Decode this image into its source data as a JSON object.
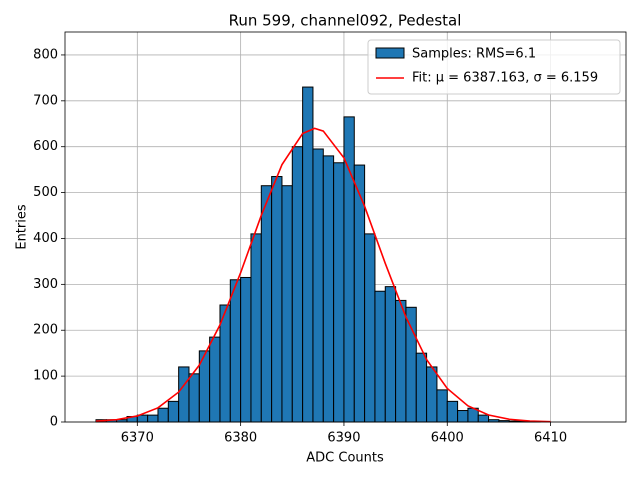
{
  "chart_data": {
    "type": "histogram",
    "title": "Run 599, channel092, Pedestal",
    "xlabel": "ADC Counts",
    "ylabel": "Entries",
    "name": "Samples: RMS=6.1",
    "color": "#1f77b4",
    "bins": [
      6366,
      6367,
      6368,
      6369,
      6370,
      6371,
      6372,
      6373,
      6374,
      6375,
      6376,
      6377,
      6378,
      6379,
      6380,
      6381,
      6382,
      6383,
      6384,
      6385,
      6386,
      6387,
      6388,
      6389,
      6390,
      6391,
      6392,
      6393,
      6394,
      6395,
      6396,
      6397,
      6398,
      6399,
      6400,
      6401,
      6402,
      6403,
      6404,
      6405,
      6406,
      6407,
      6408,
      6409
    ],
    "values": [
      5,
      5,
      5,
      12,
      15,
      15,
      30,
      45,
      120,
      105,
      155,
      185,
      255,
      310,
      315,
      410,
      515,
      535,
      515,
      600,
      730,
      595,
      580,
      565,
      665,
      560,
      410,
      285,
      295,
      265,
      250,
      150,
      120,
      70,
      45,
      25,
      30,
      15,
      5,
      3,
      2,
      1,
      1
    ],
    "fit": {
      "name": "Fit: μ = 6387.163, σ = 6.159",
      "color": "#ff0000",
      "x": [
        6366,
        6368,
        6370,
        6372,
        6374,
        6376,
        6378,
        6380,
        6382,
        6384,
        6386,
        6387.163,
        6388,
        6390,
        6392,
        6394,
        6396,
        6398,
        6400,
        6402,
        6404,
        6406,
        6408,
        6410
      ],
      "values": [
        1.7,
        5.1,
        13.2,
        30.9,
        65.2,
        123.9,
        211.6,
        325.4,
        450.4,
        560.9,
        628.7,
        640,
        634.1,
        575.5,
        470.1,
        345.6,
        228.7,
        136.1,
        73.0,
        35.2,
        15.2,
        6.0,
        2.1,
        0.7
      ]
    },
    "xlim": [
      6363,
      6417.3
    ],
    "ylim": [
      0,
      850
    ],
    "xticks": [
      6370,
      6380,
      6390,
      6400,
      6410
    ],
    "yticks": [
      0,
      100,
      200,
      300,
      400,
      500,
      600,
      700,
      800
    ],
    "grid": true,
    "legend": "upper right"
  }
}
